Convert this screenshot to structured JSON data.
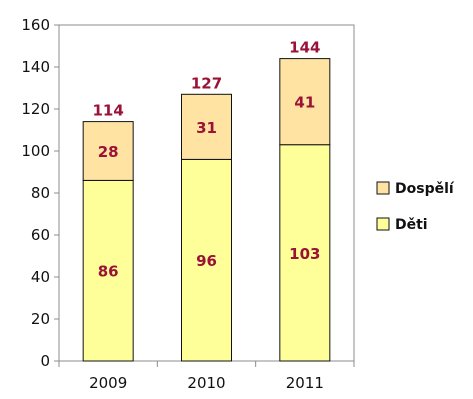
{
  "chart_data": {
    "type": "bar",
    "stacked": true,
    "categories": [
      "2009",
      "2010",
      "2011"
    ],
    "series": [
      {
        "name": "Děti",
        "values": [
          86,
          96,
          103
        ],
        "color": "#ffff99"
      },
      {
        "name": "Dospělí",
        "values": [
          28,
          31,
          41
        ],
        "color": "#ffe3a3"
      }
    ],
    "totals": [
      114,
      127,
      144
    ],
    "y_ticks": [
      0,
      20,
      40,
      60,
      80,
      100,
      120,
      140,
      160
    ],
    "ylim": [
      0,
      160
    ],
    "grid": false,
    "legend_position": "right",
    "label_color": "#9b1237",
    "axis_color": "#8c8c8c",
    "bar_border_color": "#111111"
  }
}
